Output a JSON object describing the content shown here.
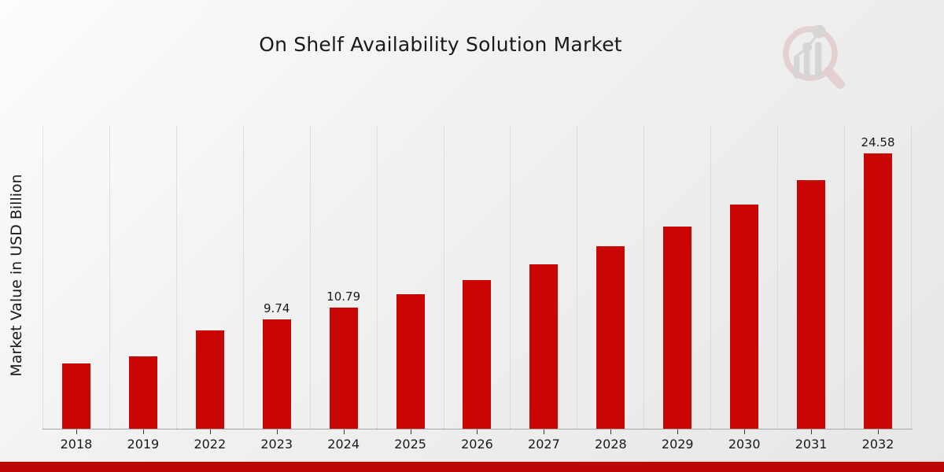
{
  "chart_data": {
    "type": "bar",
    "title": "On Shelf Availability Solution Market",
    "ylabel": "Market Value in USD Billion",
    "xlabel": "",
    "categories": [
      "2018",
      "2019",
      "2022",
      "2023",
      "2024",
      "2025",
      "2026",
      "2027",
      "2028",
      "2029",
      "2030",
      "2031",
      "2032"
    ],
    "values": [
      5.8,
      6.43,
      8.78,
      9.74,
      10.79,
      11.96,
      13.25,
      14.69,
      16.28,
      18.04,
      20.0,
      22.17,
      24.58
    ],
    "data_labels": [
      "",
      "",
      "",
      "9.74",
      "10.79",
      "",
      "",
      "",
      "",
      "",
      "",
      "",
      "24.58"
    ],
    "ylim": [
      0,
      27
    ],
    "grid": "vertical-dotted",
    "legend": "none",
    "bar_color": "#c90604"
  },
  "style": {
    "accent_bar_color": "#bd0404",
    "gridline_color": "#c9c9c9",
    "axis_color": "#a8a8a8",
    "text_color": "#1a1a1a",
    "background_top": "#fdfdfd",
    "background_bottom": "#e7e7e7"
  },
  "logo": {
    "name": "magnifier-bar-chart-watermark",
    "ring_color": "#debaba",
    "glyph_color": "#c3c3c3"
  }
}
